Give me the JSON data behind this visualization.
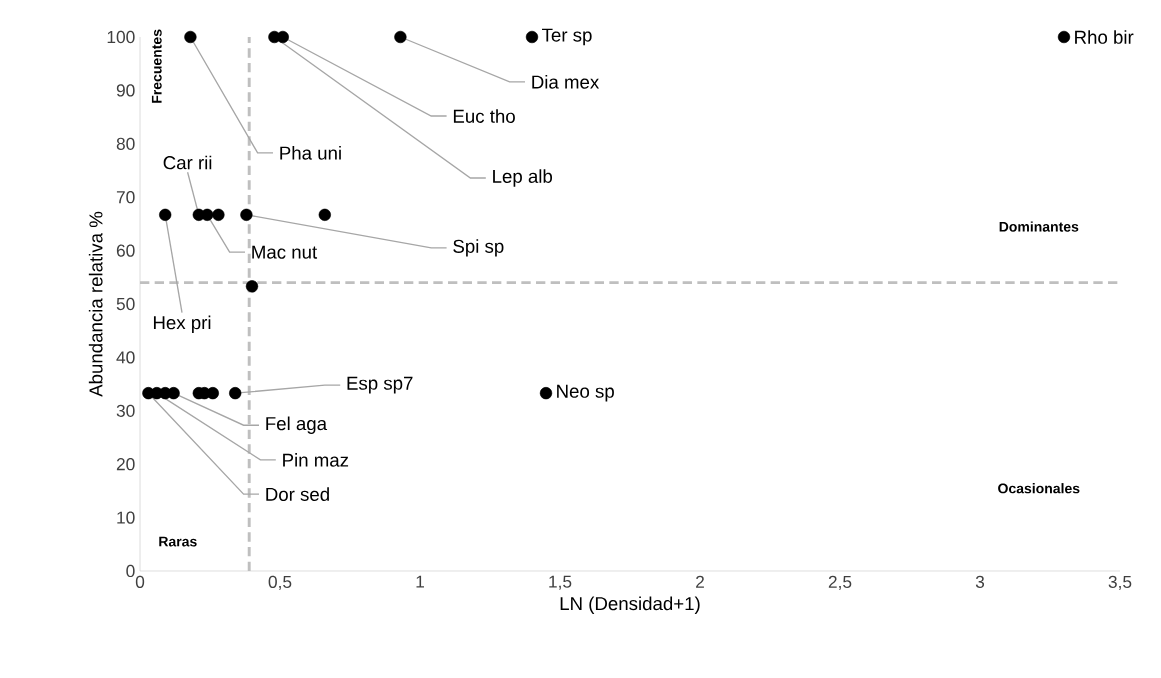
{
  "chart_data": {
    "type": "scatter",
    "xlabel": "LN (Densidad+1)",
    "ylabel": "Abundancia relativa %",
    "x": [
      0.18,
      0.48,
      0.51,
      0.93,
      1.4,
      3.3,
      0.09,
      0.21,
      0.24,
      0.28,
      0.38,
      0.66,
      0.4,
      0.03,
      0.06,
      0.09,
      0.12,
      0.21,
      0.23,
      0.26,
      0.34,
      1.45
    ],
    "series": [
      {
        "color": "#000000",
        "values": [
          100,
          100,
          100,
          100,
          100,
          100,
          66.7,
          66.7,
          66.7,
          66.7,
          66.7,
          66.7,
          53.3,
          33.3,
          33.3,
          33.3,
          33.3,
          33.3,
          33.3,
          33.3,
          33.3,
          33.3
        ]
      }
    ],
    "marker": "circle",
    "grid": false,
    "xlim": [
      0,
      3.5
    ],
    "ylim": [
      0,
      100
    ],
    "xticks": [
      0,
      {
        "value": 0.5,
        "label": "0,5"
      },
      1,
      {
        "value": 1.5,
        "label": "1,5"
      },
      2,
      {
        "value": 2.5,
        "label": "2,5"
      },
      3,
      {
        "value": 3.5,
        "label": "3,5"
      }
    ],
    "yticks": [
      0,
      10,
      20,
      30,
      40,
      50,
      60,
      70,
      80,
      90,
      100
    ],
    "ref_lines": [
      {
        "axis": "x",
        "value": 0.39,
        "color": "#bfbfbf",
        "line_style": "dashed"
      },
      {
        "axis": "y",
        "value": 54,
        "color": "#bfbfbf",
        "line_style": "dashed"
      }
    ],
    "annotations": [
      {
        "text": "Pha uni",
        "x": 0.18,
        "y": 100
      },
      {
        "text": "Euc tho",
        "x": 0.51,
        "y": 100
      },
      {
        "text": "Lep alb",
        "x": 0.48,
        "y": 100
      },
      {
        "text": "Dia mex",
        "x": 0.93,
        "y": 100
      },
      {
        "text": "Ter sp",
        "x": 1.4,
        "y": 100
      },
      {
        "text": "Rho bir",
        "x": 3.3,
        "y": 100
      },
      {
        "text": "Car rii",
        "x": 0.21,
        "y": 66.7
      },
      {
        "text": "Mac nut",
        "x": 0.24,
        "y": 66.7
      },
      {
        "text": "Spi sp",
        "x": 0.38,
        "y": 66.7
      },
      {
        "text": "Hex pri",
        "x": 0.09,
        "y": 66.7
      },
      {
        "text": "Esp sp7",
        "x": 0.34,
        "y": 33.3
      },
      {
        "text": "Fel aga",
        "x": 0.12,
        "y": 33.3
      },
      {
        "text": "Pin maz",
        "x": 0.06,
        "y": 33.3
      },
      {
        "text": "Dor sed",
        "x": 0.03,
        "y": 33.3
      },
      {
        "text": "Neo sp",
        "x": 1.45,
        "y": 33.3
      },
      "Frecuentes",
      "Dominantes",
      "Raras",
      "Ocasionales"
    ]
  }
}
